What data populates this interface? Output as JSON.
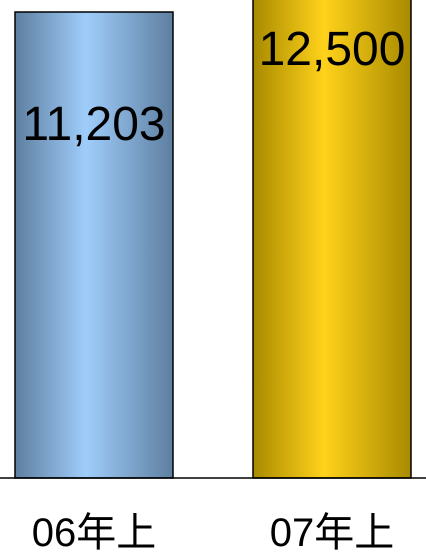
{
  "chart_data": {
    "type": "bar",
    "categories": [
      "06年上",
      "07年上"
    ],
    "values": [
      11203,
      12500
    ],
    "data_labels": [
      "11,203",
      "12,500"
    ],
    "colors": {
      "bar_1": {
        "edge": "#5e7fa0",
        "mid": "#9fcdfb"
      },
      "bar_2": {
        "edge": "#a88a00",
        "mid": "#ffd21a"
      },
      "axis": "#000000"
    }
  }
}
